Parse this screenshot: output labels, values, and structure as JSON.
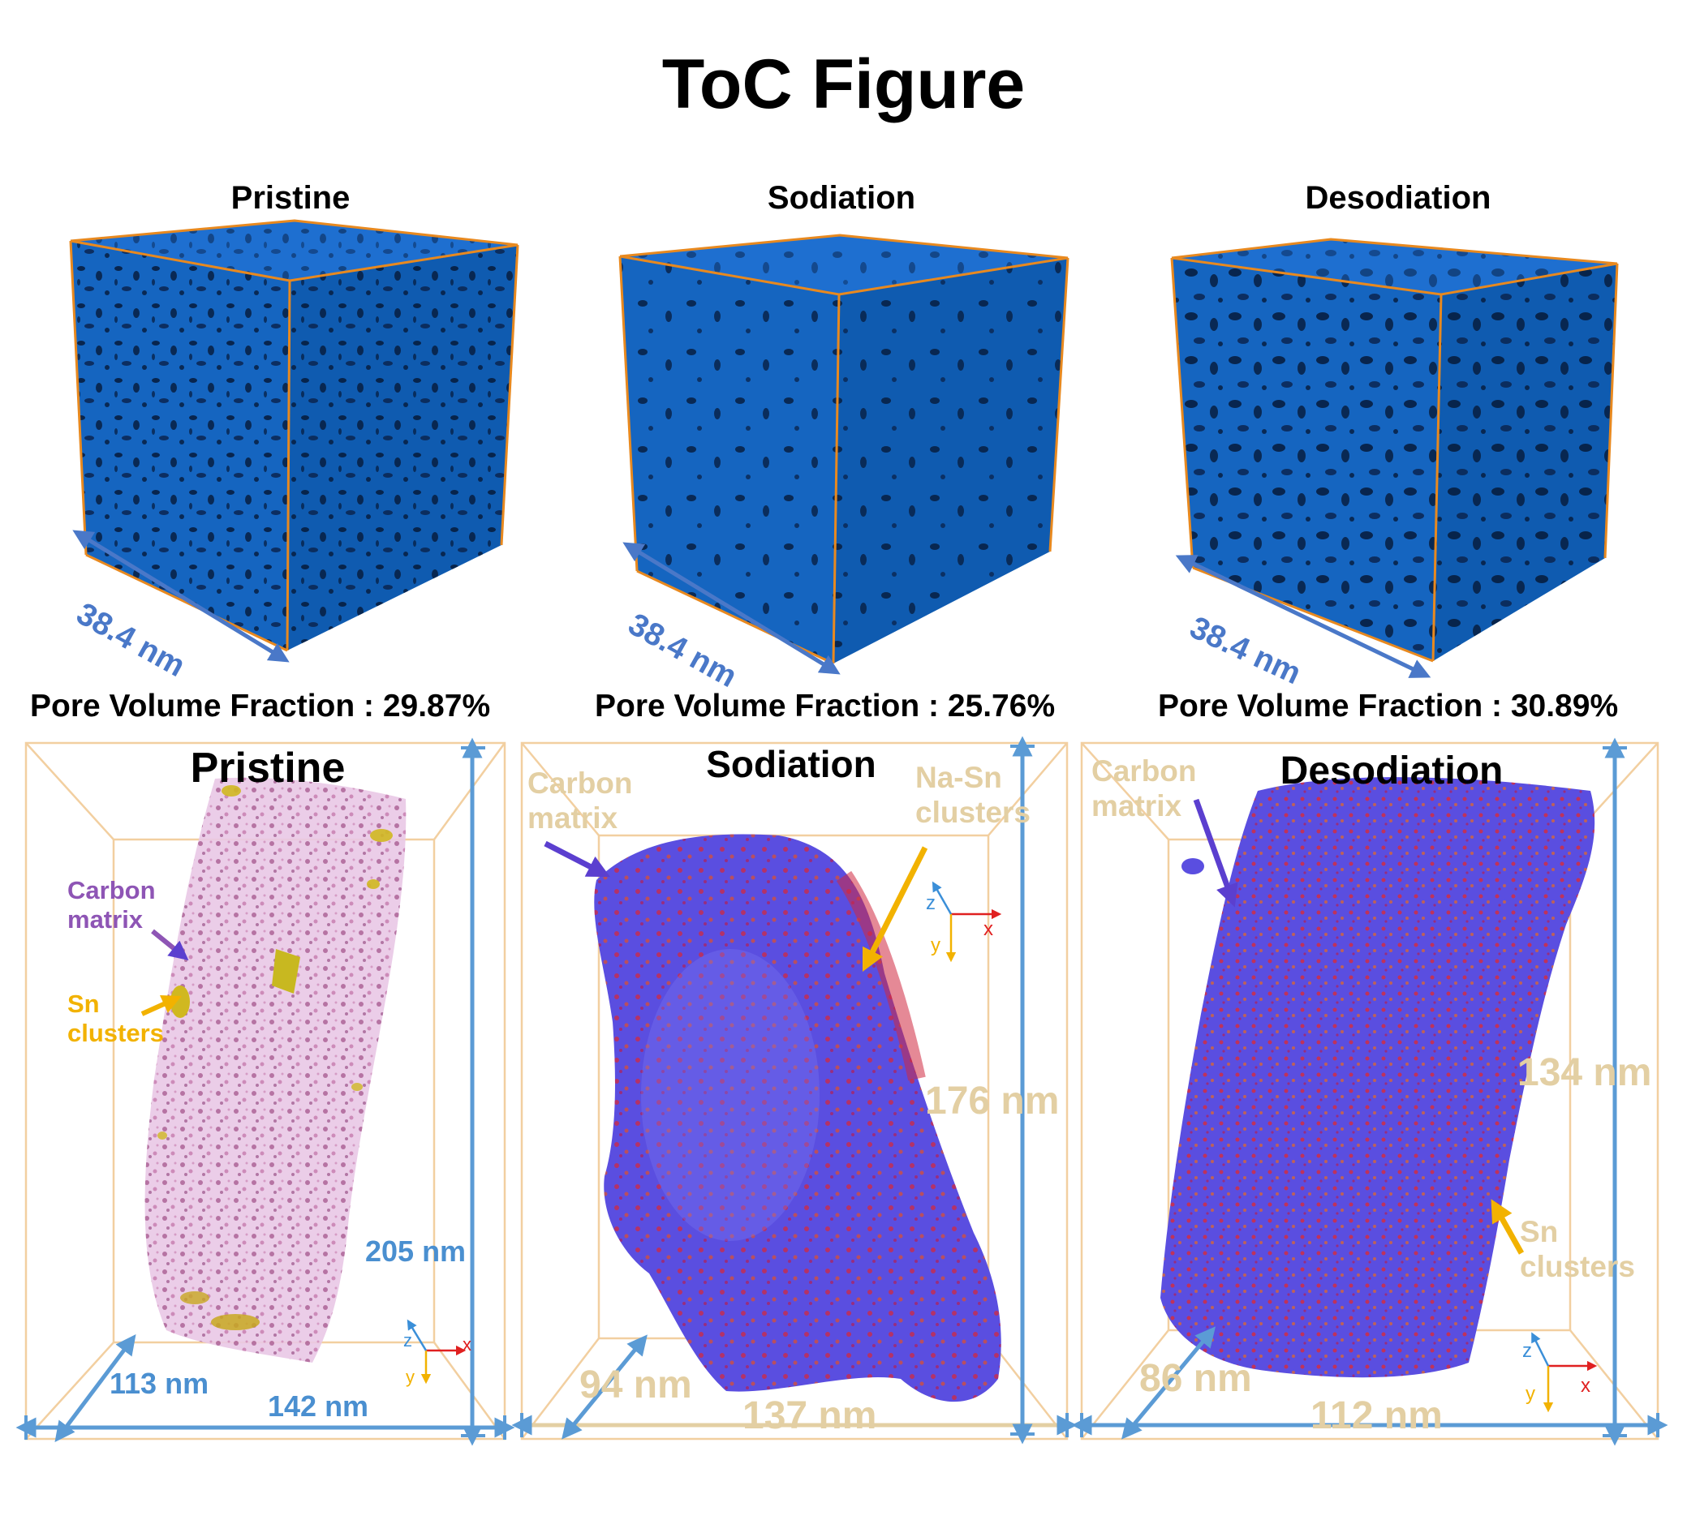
{
  "figure": {
    "title": "ToC Figure",
    "top_row": [
      {
        "label": "Pristine",
        "scale": "38.4 nm",
        "fraction_label": "Pore Volume Fraction : 29.87%"
      },
      {
        "label": "Sodiation",
        "scale": "38.4 nm",
        "fraction_label": "Pore Volume Fraction : 25.76%"
      },
      {
        "label": "Desodiation",
        "scale": "38.4 nm",
        "fraction_label": "Pore Volume Fraction : 30.89%"
      }
    ],
    "bottom_row": [
      {
        "title": "Pristine",
        "annotations": {
          "matrix": "Carbon matrix",
          "clusters": "Sn clusters"
        },
        "dims": {
          "depth": "113 nm",
          "width": "142 nm",
          "height": "205 nm"
        },
        "axes": {
          "x": "x",
          "y": "y",
          "z": "z"
        }
      },
      {
        "title": "Sodiation",
        "annotations": {
          "matrix": "Carbon matrix",
          "clusters": "Na-Sn clusters"
        },
        "dims": {
          "depth": "94 nm",
          "width": "137 nm",
          "height": "176 nm"
        },
        "axes": {
          "x": "x",
          "y": "y",
          "z": "z"
        }
      },
      {
        "title": "Desodiation",
        "annotations": {
          "matrix": "Carbon matrix",
          "clusters": "Sn clusters"
        },
        "dims": {
          "depth": "86 nm",
          "width": "112 nm",
          "height": "134 nm"
        },
        "axes": {
          "x": "x",
          "y": "y",
          "z": "z"
        }
      }
    ]
  },
  "colors": {
    "cube_blue": "#1565c0",
    "cube_dark": "#0b3f86",
    "cube_edge": "#e8891f",
    "scale_blue": "#4a78c8",
    "box_beige": "#f2cfa0",
    "dim_blue": "#5b9bd5",
    "dim_tan": "#e3cfa3",
    "arrow_purple": "#5b3fcf",
    "arrow_orange": "#f2b200",
    "text_purple": "#8e55b5",
    "text_orange": "#f2b200"
  }
}
